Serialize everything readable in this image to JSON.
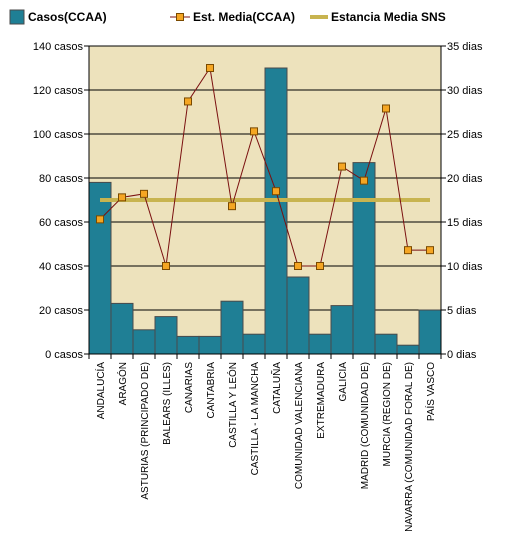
{
  "chart_data": {
    "type": "bar",
    "categories": [
      "ANDALUCÍA",
      "ARAGÓN",
      "ASTURIAS (PRINCIPADO DE)",
      "BALEARS (ILLES)",
      "CANARIAS",
      "CANTABRIA",
      "CASTILLA Y LEÓN",
      "CASTILLA - LA MANCHA",
      "CATALUÑA",
      "COMUNIDAD VALENCIANA",
      "EXTREMADURA",
      "GALICIA",
      "MADRID (COMUNIDAD DE)",
      "MURCIA (REGION DE)",
      "NAVARRA (COMUNIDAD FORAL DE)",
      "PAÍS VASCO"
    ],
    "series": [
      {
        "name": "Casos(CCAA)",
        "type": "bar",
        "axis": "left",
        "color": "#1f7f95",
        "values": [
          78,
          23,
          11,
          17,
          8,
          8,
          24,
          9,
          130,
          35,
          9,
          22,
          87,
          9,
          4,
          20
        ]
      },
      {
        "name": "Est. Media(CCAA)",
        "type": "line",
        "axis": "right",
        "color": "#7a1010",
        "marker_color": "#f5a623",
        "values": [
          15.3,
          17.8,
          18.2,
          10.0,
          28.7,
          32.5,
          16.8,
          25.3,
          18.5,
          10.0,
          10.0,
          21.3,
          19.7,
          27.9,
          11.8,
          11.8
        ]
      },
      {
        "name": "Estancia Media SNS",
        "type": "line",
        "axis": "right",
        "color": "#c8b450",
        "value": 17.5
      }
    ],
    "yleft": {
      "ylim": [
        0,
        140
      ],
      "ticks": [
        0,
        20,
        40,
        60,
        80,
        100,
        120,
        140
      ],
      "unit": "casos"
    },
    "yright": {
      "ylim": [
        0,
        35
      ],
      "ticks": [
        0,
        5,
        10,
        15,
        20,
        25,
        30,
        35
      ],
      "unit": "dias"
    },
    "grid": true,
    "legend": "top",
    "plot_background": "#ede2bc"
  }
}
